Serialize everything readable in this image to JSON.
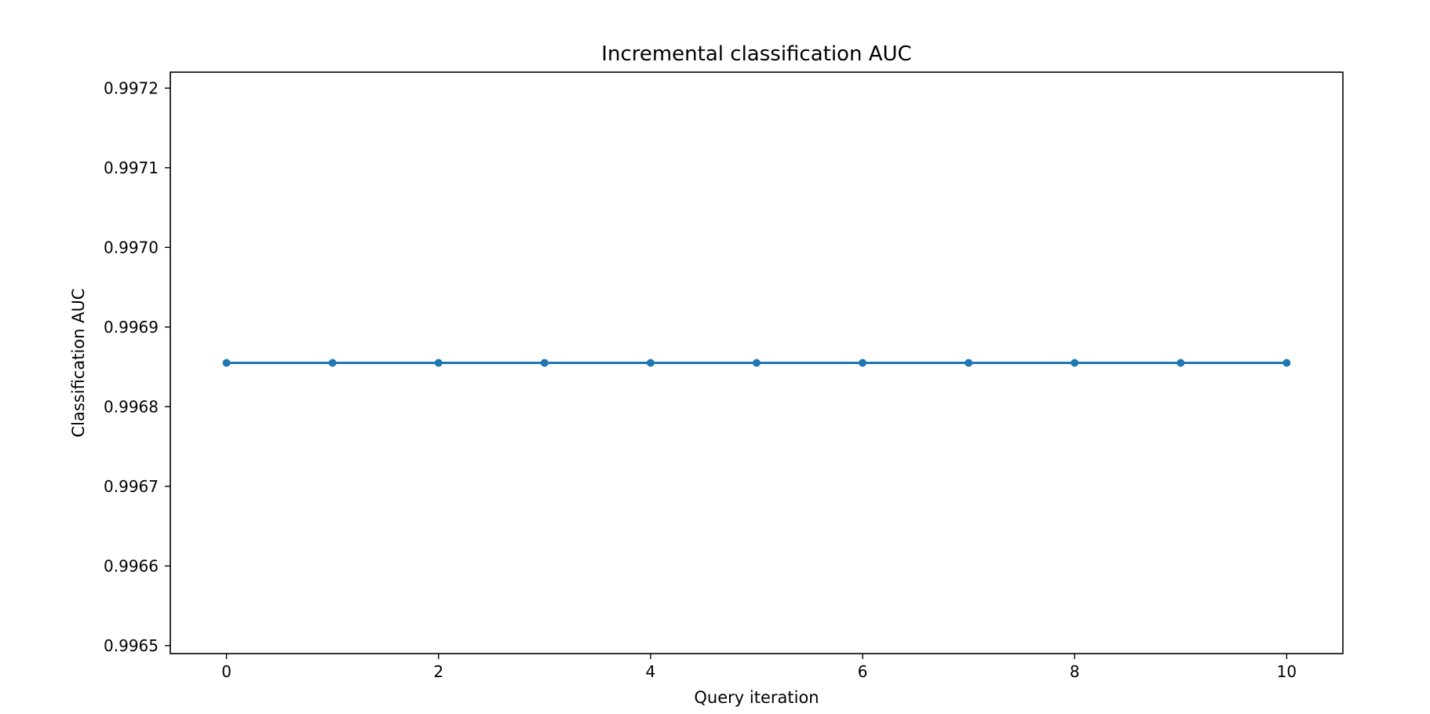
{
  "chart_data": {
    "type": "line",
    "title": "Incremental classification AUC",
    "xlabel": "Query iteration",
    "ylabel": "Classification AUC",
    "xlim": [
      -0.53,
      10.53
    ],
    "ylim": [
      0.99649,
      0.99722
    ],
    "xticks": [
      0,
      2,
      4,
      6,
      8,
      10
    ],
    "xtick_labels": [
      "0",
      "2",
      "4",
      "6",
      "8",
      "10"
    ],
    "yticks": [
      0.9965,
      0.9966,
      0.9967,
      0.9968,
      0.9969,
      0.997,
      0.9971,
      0.9972
    ],
    "ytick_labels": [
      "0.9965",
      "0.9966",
      "0.9967",
      "0.9968",
      "0.9969",
      "0.9970",
      "0.9971",
      "0.9972"
    ],
    "grid": false,
    "series": [
      {
        "color": "#1f77b4",
        "marker": "circle",
        "x": [
          0,
          1,
          2,
          3,
          4,
          5,
          6,
          7,
          8,
          9,
          10
        ],
        "y": [
          0.996855,
          0.996855,
          0.996855,
          0.996855,
          0.996855,
          0.996855,
          0.996855,
          0.996855,
          0.996855,
          0.996855,
          0.996855
        ]
      }
    ]
  }
}
